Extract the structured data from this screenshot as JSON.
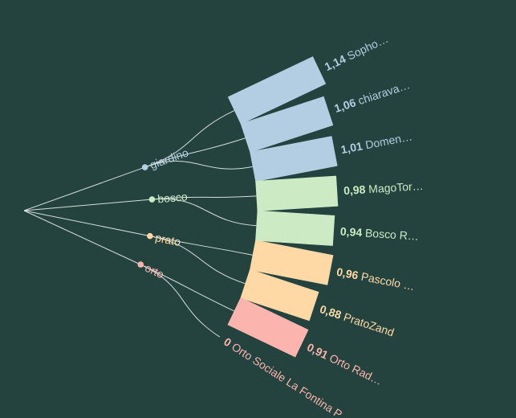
{
  "chart_data": {
    "type": "radial-tree-bar",
    "categories": [
      {
        "name": "giardino",
        "color": "#b3cde3"
      },
      {
        "name": "bosco",
        "color": "#ccebc5"
      },
      {
        "name": "prato",
        "color": "#fed9a6"
      },
      {
        "name": "orto",
        "color": "#fbb4ae"
      }
    ],
    "leaves": [
      {
        "category": "giardino",
        "label": "Sopho…",
        "value": 1.14,
        "display": "1,14"
      },
      {
        "category": "giardino",
        "label": "chiarava…",
        "value": 1.06,
        "display": "1,06"
      },
      {
        "category": "giardino",
        "label": "Domen…",
        "value": 1.01,
        "display": "1,01"
      },
      {
        "category": "bosco",
        "label": "MagoTor…",
        "value": 0.98,
        "display": "0,98"
      },
      {
        "category": "bosco",
        "label": "Bosco R…",
        "value": 0.94,
        "display": "0,94"
      },
      {
        "category": "prato",
        "label": "Pascolo …",
        "value": 0.96,
        "display": "0,96"
      },
      {
        "category": "prato",
        "label": "PratoZand",
        "value": 0.88,
        "display": "0,88"
      },
      {
        "category": "orto",
        "label": "Orto Rad…",
        "value": 0.91,
        "display": "0,91"
      },
      {
        "category": "orto",
        "label": "Orto Sociale La Fontina P…",
        "value": 0,
        "display": "0"
      }
    ]
  }
}
